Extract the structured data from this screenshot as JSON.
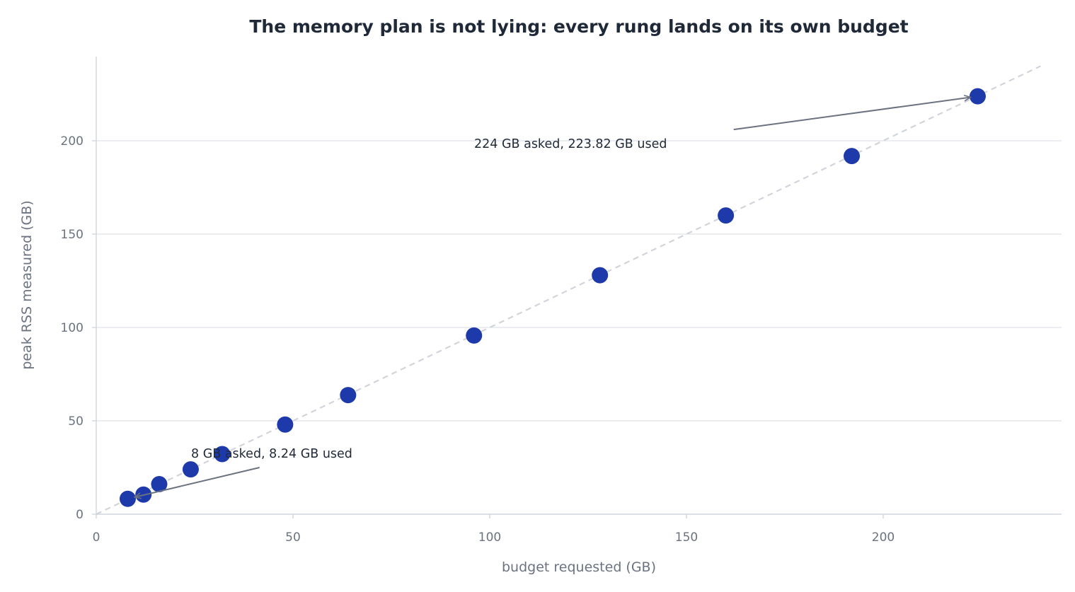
{
  "chart_data": {
    "type": "scatter",
    "title": "The memory plan is not lying: every rung lands on its own budget",
    "xlabel": "budget requested (GB)",
    "ylabel": "peak RSS measured (GB)",
    "xlim": [
      0,
      245
    ],
    "ylim": [
      0,
      245
    ],
    "xticks": [
      0,
      50,
      100,
      150,
      200
    ],
    "yticks": [
      0,
      50,
      100,
      150,
      200
    ],
    "grid": "horizontal",
    "reference_line": {
      "from": [
        0,
        0
      ],
      "to": [
        240,
        240
      ],
      "style": "dashed"
    },
    "points": [
      {
        "x": 8,
        "y": 8.24
      },
      {
        "x": 12,
        "y": 10.5
      },
      {
        "x": 16,
        "y": 16.1
      },
      {
        "x": 24,
        "y": 24.0
      },
      {
        "x": 32,
        "y": 32.2
      },
      {
        "x": 48,
        "y": 48.0
      },
      {
        "x": 64,
        "y": 63.8
      },
      {
        "x": 96,
        "y": 95.7
      },
      {
        "x": 128,
        "y": 128.0
      },
      {
        "x": 160,
        "y": 160.0
      },
      {
        "x": 192,
        "y": 191.8
      },
      {
        "x": 224,
        "y": 223.82
      }
    ],
    "annotations": [
      {
        "text": "224 GB asked, 223.82 GB used",
        "point": [
          224,
          223.82
        ],
        "text_at": [
          162,
          206
        ]
      },
      {
        "text": "8 GB asked, 8.24 GB used",
        "point": [
          8,
          8.24
        ],
        "text_at": [
          41.5,
          25
        ]
      }
    ],
    "colors": {
      "points": "#1e3aaa",
      "reference_line": "#d1d5db",
      "grid": "#e5e7eb",
      "axis": "#d1d5db",
      "arrow": "#6b7280",
      "title": "#1f2937",
      "label": "#6b7280"
    }
  }
}
